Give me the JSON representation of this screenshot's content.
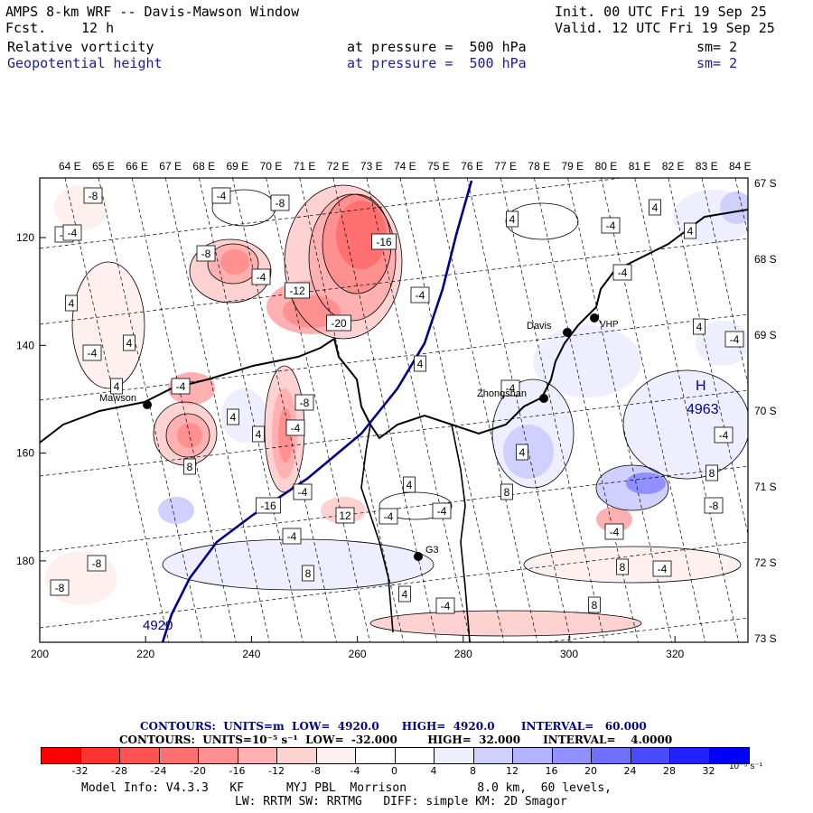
{
  "header": {
    "title": "AMPS 8-km WRF -- Davis-Mawson Window",
    "init": "Init. 00 UTC Fri 19 Sep 25",
    "fcst_label": "Fcst.",
    "fcst_value": "12 h",
    "valid": "Valid. 12 UTC Fri 19 Sep 25",
    "field1_name": "Relative vorticity",
    "field1_level": "at pressure =  500 hPa",
    "field1_sm": "sm= 2",
    "field2_name": "Geopotential height",
    "field2_level": "at pressure =  500 hPa",
    "field2_sm": "sm= 2"
  },
  "map": {
    "top_longitudes": [
      "64 E",
      "65 E",
      "66 E",
      "67 E",
      "68 E",
      "69 E",
      "70 E",
      "71 E",
      "72 E",
      "73 E",
      "74 E",
      "75 E",
      "76 E",
      "77 E",
      "78 E",
      "79 E",
      "80 E",
      "81 E",
      "82 E",
      "83 E",
      "84 E"
    ],
    "right_latitudes": [
      "67 S",
      "68 S",
      "69 S",
      "70 S",
      "71 S",
      "72 S",
      "73 S"
    ],
    "x_ticks": [
      "200",
      "220",
      "240",
      "260",
      "280",
      "300",
      "320"
    ],
    "y_ticks": [
      "120",
      "140",
      "160",
      "180"
    ],
    "stations": {
      "davis": "Davis",
      "mawson": "Mawson",
      "zhongshan": "Zhongshan",
      "g3": "G3",
      "vhp": "VHP"
    },
    "high_marker": "H",
    "high_value": "4963",
    "height_label": "4920",
    "contour_labels": [
      "-8",
      "4",
      "-8",
      "-4",
      "-16",
      "-8",
      "-4",
      "-12",
      "-4",
      "4",
      "-20",
      "-4",
      "4",
      "4",
      "4",
      "-4",
      "-8",
      "4",
      "-4",
      "4",
      "4",
      "8",
      "-16",
      "-4",
      "12",
      "-4",
      "-4",
      "-8",
      "8",
      "-4",
      "-4",
      "4",
      "-4",
      "8",
      "-8",
      "8",
      "4",
      "-4",
      "8",
      "-4",
      "4",
      "4",
      "-4",
      "8",
      "-8",
      "-4",
      "-4",
      "4",
      "4",
      "-4",
      "-4",
      "-4"
    ]
  },
  "legend": {
    "line1": "CONTOURS:  UNITS=m  LOW=  4920.0      HIGH=  4920.0       INTERVAL=   60.000",
    "line2": "CONTOURS:  UNITS=10⁻⁵ s⁻¹  LOW=  -32.000        HIGH=  32.000      INTERVAL=    4.0000",
    "colors": [
      "#ff0000",
      "#ff3333",
      "#ff5252",
      "#ff7070",
      "#ff9090",
      "#ffb0b0",
      "#ffd2d2",
      "#fff0f0",
      "#ffffff",
      "#ffffff",
      "#eeeeff",
      "#d0d0ff",
      "#b2b2ff",
      "#9090ff",
      "#7070ff",
      "#4a4aff",
      "#2222ff",
      "#0000ff"
    ],
    "ticks": [
      "-32",
      "-28",
      "-24",
      "-20",
      "-16",
      "-12",
      "-8",
      "-4",
      "0",
      "4",
      "8",
      "12",
      "16",
      "20",
      "24",
      "28",
      "32"
    ],
    "units": "10⁻⁵ s⁻¹"
  },
  "footer": {
    "line1": "Model Info: V4.3.3   KF      MYJ PBL  Morrison          8.0 km,  60 levels,",
    "line2": "LW: RRTM SW: RRTMG   DIFF: simple KM: 2D Smagor"
  }
}
